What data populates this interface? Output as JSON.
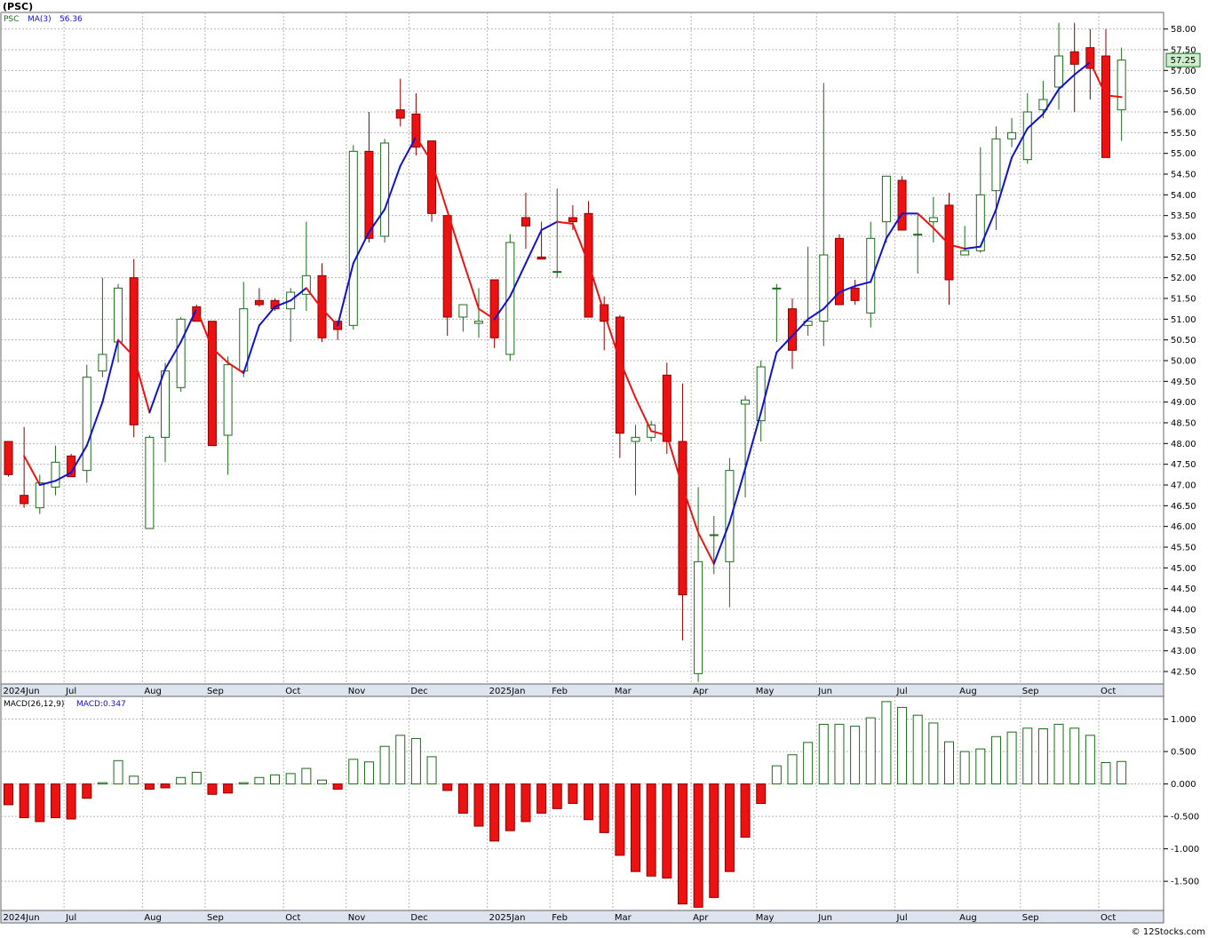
{
  "header": {
    "symbol": "(PSC)",
    "ticker": "PSC",
    "ma_label": "MA(3)",
    "ma_value": "56.36",
    "macd_label": "MACD(26,12,9)",
    "macd_value": "MACD:0.347",
    "price_tag": "57.25"
  },
  "footer": {
    "copyright": "© 12Stocks.com"
  },
  "colors": {
    "up": "#1a6b1a",
    "down_fill": "#ee1111",
    "down_stroke": "#8b0000",
    "ma_up": "#1010d0",
    "ma_down": "#ee1111",
    "grid": "#b5b5b5",
    "axis_bar": "#dde4f0",
    "price_tag_bg": "#cfeccf"
  },
  "chart_data": [
    {
      "type": "candlestick",
      "title": "(PSC)",
      "timeframe": "weekly",
      "ylim": [
        42.2,
        58.4
      ],
      "y_ticks": [
        "42.50",
        "43.00",
        "43.50",
        "44.00",
        "44.50",
        "45.00",
        "45.50",
        "46.00",
        "46.50",
        "47.00",
        "47.50",
        "48.00",
        "48.50",
        "49.00",
        "49.50",
        "50.00",
        "50.50",
        "51.00",
        "51.50",
        "52.00",
        "52.50",
        "53.00",
        "53.50",
        "54.00",
        "54.50",
        "55.00",
        "55.50",
        "56.00",
        "56.50",
        "57.00",
        "57.50",
        "58.00"
      ],
      "x_labels": [
        {
          "label": "2024Jun",
          "week": 0
        },
        {
          "label": "Jul",
          "week": 4
        },
        {
          "label": "Aug",
          "week": 9
        },
        {
          "label": "Sep",
          "week": 13
        },
        {
          "label": "Oct",
          "week": 18
        },
        {
          "label": "Nov",
          "week": 22
        },
        {
          "label": "Dec",
          "week": 26
        },
        {
          "label": "2025Jan",
          "week": 31
        },
        {
          "label": "Feb",
          "week": 35
        },
        {
          "label": "Mar",
          "week": 39
        },
        {
          "label": "Apr",
          "week": 44
        },
        {
          "label": "May",
          "week": 48
        },
        {
          "label": "Jun",
          "week": 52
        },
        {
          "label": "Jul",
          "week": 57
        },
        {
          "label": "Aug",
          "week": 61
        },
        {
          "label": "Sep",
          "week": 65
        },
        {
          "label": "Oct",
          "week": 70
        }
      ],
      "candles": [
        {
          "o": 48.05,
          "h": 48.05,
          "l": 47.2,
          "c": 47.25
        },
        {
          "o": 46.75,
          "h": 48.4,
          "l": 46.45,
          "c": 46.55
        },
        {
          "o": 46.45,
          "h": 47.25,
          "l": 46.3,
          "c": 47.05
        },
        {
          "o": 46.95,
          "h": 47.95,
          "l": 46.75,
          "c": 47.55
        },
        {
          "o": 47.7,
          "h": 47.75,
          "l": 47.2,
          "c": 47.2
        },
        {
          "o": 47.35,
          "h": 49.9,
          "l": 47.05,
          "c": 49.6
        },
        {
          "o": 49.75,
          "h": 52.0,
          "l": 49.6,
          "c": 50.15
        },
        {
          "o": 50.45,
          "h": 51.85,
          "l": 49.95,
          "c": 51.75
        },
        {
          "o": 52.0,
          "h": 52.45,
          "l": 48.15,
          "c": 48.45
        },
        {
          "o": 45.95,
          "h": 48.2,
          "l": 45.95,
          "c": 48.15
        },
        {
          "o": 48.15,
          "h": 49.95,
          "l": 47.55,
          "c": 49.75
        },
        {
          "o": 49.35,
          "h": 51.05,
          "l": 49.25,
          "c": 51.0
        },
        {
          "o": 51.3,
          "h": 51.35,
          "l": 50.95,
          "c": 50.95
        },
        {
          "o": 50.95,
          "h": 50.95,
          "l": 47.95,
          "c": 47.95
        },
        {
          "o": 48.2,
          "h": 50.1,
          "l": 47.25,
          "c": 49.9
        },
        {
          "o": 49.75,
          "h": 51.9,
          "l": 49.6,
          "c": 51.25
        },
        {
          "o": 51.45,
          "h": 51.75,
          "l": 51.3,
          "c": 51.35
        },
        {
          "o": 51.45,
          "h": 51.5,
          "l": 51.2,
          "c": 51.25
        },
        {
          "o": 51.25,
          "h": 51.75,
          "l": 50.45,
          "c": 51.65
        },
        {
          "o": 51.6,
          "h": 53.35,
          "l": 51.2,
          "c": 52.05
        },
        {
          "o": 52.05,
          "h": 52.35,
          "l": 50.45,
          "c": 50.55
        },
        {
          "o": 50.95,
          "h": 50.95,
          "l": 50.5,
          "c": 50.75
        },
        {
          "o": 50.85,
          "h": 55.2,
          "l": 50.75,
          "c": 55.05
        },
        {
          "o": 55.05,
          "h": 56.0,
          "l": 52.85,
          "c": 52.95
        },
        {
          "o": 53.0,
          "h": 55.35,
          "l": 52.85,
          "c": 55.25
        },
        {
          "o": 56.05,
          "h": 56.8,
          "l": 55.65,
          "c": 55.85
        },
        {
          "o": 55.95,
          "h": 56.45,
          "l": 54.95,
          "c": 55.15
        },
        {
          "o": 55.3,
          "h": 55.3,
          "l": 53.35,
          "c": 53.55
        },
        {
          "o": 53.5,
          "h": 53.5,
          "l": 50.6,
          "c": 51.05
        },
        {
          "o": 51.05,
          "h": 51.2,
          "l": 50.7,
          "c": 51.35
        },
        {
          "o": 50.9,
          "h": 51.75,
          "l": 50.55,
          "c": 50.95
        },
        {
          "o": 51.95,
          "h": 51.95,
          "l": 50.3,
          "c": 50.55
        },
        {
          "o": 50.15,
          "h": 53.05,
          "l": 50.0,
          "c": 52.85
        },
        {
          "o": 53.45,
          "h": 54.05,
          "l": 52.7,
          "c": 53.25
        },
        {
          "o": 52.5,
          "h": 53.35,
          "l": 52.45,
          "c": 52.45
        },
        {
          "o": 52.15,
          "h": 54.15,
          "l": 52.0,
          "c": 52.15
        },
        {
          "o": 53.45,
          "h": 53.75,
          "l": 53.15,
          "c": 53.35
        },
        {
          "o": 53.55,
          "h": 53.85,
          "l": 51.1,
          "c": 51.05
        },
        {
          "o": 51.35,
          "h": 51.55,
          "l": 50.25,
          "c": 50.95
        },
        {
          "o": 51.05,
          "h": 51.1,
          "l": 47.65,
          "c": 48.25
        },
        {
          "o": 48.05,
          "h": 48.45,
          "l": 46.75,
          "c": 48.15
        },
        {
          "o": 48.15,
          "h": 48.55,
          "l": 48.05,
          "c": 48.45
        },
        {
          "o": 49.65,
          "h": 49.95,
          "l": 47.75,
          "c": 48.05
        },
        {
          "o": 48.05,
          "h": 49.45,
          "l": 43.25,
          "c": 44.35
        },
        {
          "o": 42.45,
          "h": 46.95,
          "l": 42.25,
          "c": 45.15
        },
        {
          "o": 45.8,
          "h": 46.25,
          "l": 44.85,
          "c": 45.8
        },
        {
          "o": 45.15,
          "h": 47.65,
          "l": 44.05,
          "c": 47.35
        },
        {
          "o": 48.95,
          "h": 49.15,
          "l": 46.7,
          "c": 49.05
        },
        {
          "o": 48.55,
          "h": 50.0,
          "l": 48.05,
          "c": 49.85
        },
        {
          "o": 51.75,
          "h": 51.85,
          "l": 50.45,
          "c": 51.75
        },
        {
          "o": 51.25,
          "h": 51.5,
          "l": 49.8,
          "c": 50.25
        },
        {
          "o": 50.85,
          "h": 52.75,
          "l": 50.6,
          "c": 50.95
        },
        {
          "o": 50.95,
          "h": 56.7,
          "l": 50.35,
          "c": 52.55
        },
        {
          "o": 52.95,
          "h": 53.05,
          "l": 51.35,
          "c": 51.35
        },
        {
          "o": 51.75,
          "h": 51.95,
          "l": 51.35,
          "c": 51.45
        },
        {
          "o": 51.15,
          "h": 53.35,
          "l": 50.8,
          "c": 52.95
        },
        {
          "o": 53.35,
          "h": 54.45,
          "l": 52.85,
          "c": 54.45
        },
        {
          "o": 54.35,
          "h": 54.45,
          "l": 53.15,
          "c": 53.15
        },
        {
          "o": 53.05,
          "h": 53.55,
          "l": 52.1,
          "c": 53.05
        },
        {
          "o": 53.35,
          "h": 53.95,
          "l": 52.85,
          "c": 53.45
        },
        {
          "o": 53.75,
          "h": 54.05,
          "l": 51.35,
          "c": 51.95
        },
        {
          "o": 52.55,
          "h": 53.25,
          "l": 52.55,
          "c": 52.65
        },
        {
          "o": 52.65,
          "h": 55.15,
          "l": 52.6,
          "c": 54.0
        },
        {
          "o": 54.1,
          "h": 55.65,
          "l": 53.15,
          "c": 55.35
        },
        {
          "o": 55.35,
          "h": 55.85,
          "l": 55.15,
          "c": 55.5
        },
        {
          "o": 54.85,
          "h": 56.45,
          "l": 54.75,
          "c": 56.0
        },
        {
          "o": 56.05,
          "h": 56.75,
          "l": 55.85,
          "c": 56.3
        },
        {
          "o": 56.6,
          "h": 58.15,
          "l": 56.05,
          "c": 57.35
        },
        {
          "o": 57.45,
          "h": 58.15,
          "l": 56.0,
          "c": 57.15
        },
        {
          "o": 57.55,
          "h": 58.0,
          "l": 56.3,
          "c": 57.05
        },
        {
          "o": 57.35,
          "h": 58.0,
          "l": 54.9,
          "c": 54.9
        },
        {
          "o": 56.05,
          "h": 57.55,
          "l": 55.3,
          "c": 57.25
        }
      ],
      "ma3": [
        null,
        47.7,
        47.0,
        47.1,
        47.3,
        47.95,
        49.0,
        50.5,
        50.1,
        48.75,
        49.8,
        50.45,
        51.25,
        50.3,
        49.95,
        49.7,
        50.85,
        51.3,
        51.45,
        51.75,
        51.25,
        50.85,
        52.35,
        53.1,
        53.65,
        54.7,
        55.4,
        54.8,
        53.6,
        52.4,
        51.25,
        51.0,
        51.55,
        52.35,
        53.15,
        53.35,
        53.3,
        52.35,
        51.15,
        50.0,
        49.1,
        48.3,
        48.2,
        46.95,
        45.85,
        45.1,
        46.1,
        47.4,
        48.75,
        50.2,
        50.6,
        51.0,
        51.25,
        51.65,
        51.8,
        51.9,
        52.95,
        53.55,
        53.55,
        53.2,
        52.8,
        52.7,
        52.75,
        53.65,
        54.9,
        55.6,
        55.95,
        56.55,
        56.9,
        57.2,
        56.4,
        56.36
      ],
      "current_price": 57.25,
      "ma3_last": 56.36
    },
    {
      "type": "bar",
      "title": "MACD(26,12,9)",
      "current_value": 0.347,
      "ylim": [
        -1.95,
        1.35
      ],
      "y_ticks": [
        "1.000",
        "0.500",
        "0.000",
        "-0.500",
        "-1.000",
        "-1.500"
      ],
      "values": [
        -0.32,
        -0.52,
        -0.58,
        -0.52,
        -0.54,
        -0.22,
        0.02,
        0.36,
        0.12,
        -0.08,
        -0.06,
        0.1,
        0.18,
        -0.16,
        -0.14,
        0.02,
        0.1,
        0.14,
        0.16,
        0.24,
        0.06,
        -0.08,
        0.38,
        0.34,
        0.58,
        0.75,
        0.7,
        0.42,
        -0.1,
        -0.45,
        -0.65,
        -0.88,
        -0.72,
        -0.58,
        -0.45,
        -0.38,
        -0.3,
        -0.55,
        -0.75,
        -1.1,
        -1.35,
        -1.42,
        -1.45,
        -1.85,
        -1.9,
        -1.75,
        -1.35,
        -0.82,
        -0.3,
        0.28,
        0.45,
        0.64,
        0.92,
        0.92,
        0.89,
        1.02,
        1.27,
        1.18,
        1.06,
        0.94,
        0.65,
        0.5,
        0.54,
        0.73,
        0.8,
        0.86,
        0.85,
        0.92,
        0.86,
        0.75,
        0.33,
        0.347
      ],
      "x_labels": [
        {
          "label": "2024Jun",
          "week": 0
        },
        {
          "label": "Jul",
          "week": 4
        },
        {
          "label": "Aug",
          "week": 9
        },
        {
          "label": "Sep",
          "week": 13
        },
        {
          "label": "Oct",
          "week": 18
        },
        {
          "label": "Nov",
          "week": 22
        },
        {
          "label": "Dec",
          "week": 26
        },
        {
          "label": "2025Jan",
          "week": 31
        },
        {
          "label": "Feb",
          "week": 35
        },
        {
          "label": "Mar",
          "week": 39
        },
        {
          "label": "Apr",
          "week": 44
        },
        {
          "label": "May",
          "week": 48
        },
        {
          "label": "Jun",
          "week": 52
        },
        {
          "label": "Jul",
          "week": 57
        },
        {
          "label": "Aug",
          "week": 61
        },
        {
          "label": "Sep",
          "week": 65
        },
        {
          "label": "Oct",
          "week": 70
        }
      ]
    }
  ]
}
